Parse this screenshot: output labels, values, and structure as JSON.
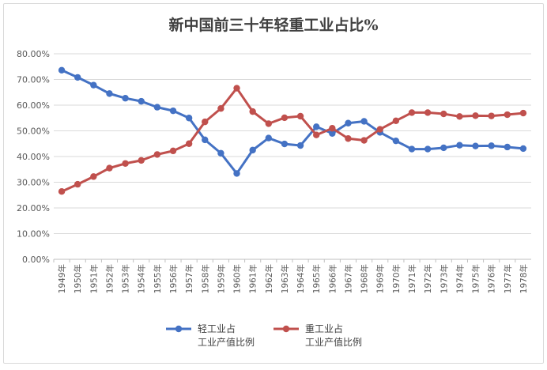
{
  "chart_data": {
    "type": "line",
    "title": "新中国前三十年轻重工业占比%",
    "xlabel": "",
    "ylabel": "",
    "ylim": [
      0,
      80
    ],
    "y_ticks": [
      "0.00%",
      "10.00%",
      "20.00%",
      "30.00%",
      "40.00%",
      "50.00%",
      "60.00%",
      "70.00%",
      "80.00%"
    ],
    "grid": true,
    "legend_position": "bottom",
    "categories": [
      "1949年",
      "1950年",
      "1951年",
      "1952年",
      "1953年",
      "1954年",
      "1955年",
      "1956年",
      "1957年",
      "1958年",
      "1959年",
      "1960年",
      "1961年",
      "1962年",
      "1963年",
      "1964年",
      "1965年",
      "1966年",
      "1967年",
      "1968年",
      "1969年",
      "1970年",
      "1971年",
      "1972年",
      "1973年",
      "1974年",
      "1975年",
      "1976年",
      "1977年",
      "1978年"
    ],
    "series": [
      {
        "name": "轻工业占工业产值比例",
        "legend_lines": [
          "轻工业占",
          "工业产值比例"
        ],
        "color": "#4472c4",
        "values": [
          73.6,
          70.8,
          67.8,
          64.5,
          62.7,
          61.5,
          59.2,
          57.8,
          55.0,
          46.5,
          41.3,
          33.4,
          42.5,
          47.2,
          44.9,
          44.3,
          51.6,
          49.0,
          53.0,
          53.7,
          49.4,
          46.1,
          42.9,
          42.9,
          43.4,
          44.4,
          44.1,
          44.2,
          43.7,
          43.1
        ]
      },
      {
        "name": "重工业占工业产值比例",
        "legend_lines": [
          "重工业占",
          "工业产值比例"
        ],
        "color": "#c0504d",
        "values": [
          26.4,
          29.2,
          32.2,
          35.5,
          37.3,
          38.5,
          40.8,
          42.2,
          45.0,
          53.5,
          58.7,
          66.6,
          57.5,
          52.8,
          55.1,
          55.7,
          48.4,
          51.0,
          47.0,
          46.3,
          50.6,
          53.9,
          57.1,
          57.1,
          56.6,
          55.6,
          55.9,
          55.8,
          56.3,
          56.9
        ]
      }
    ]
  }
}
